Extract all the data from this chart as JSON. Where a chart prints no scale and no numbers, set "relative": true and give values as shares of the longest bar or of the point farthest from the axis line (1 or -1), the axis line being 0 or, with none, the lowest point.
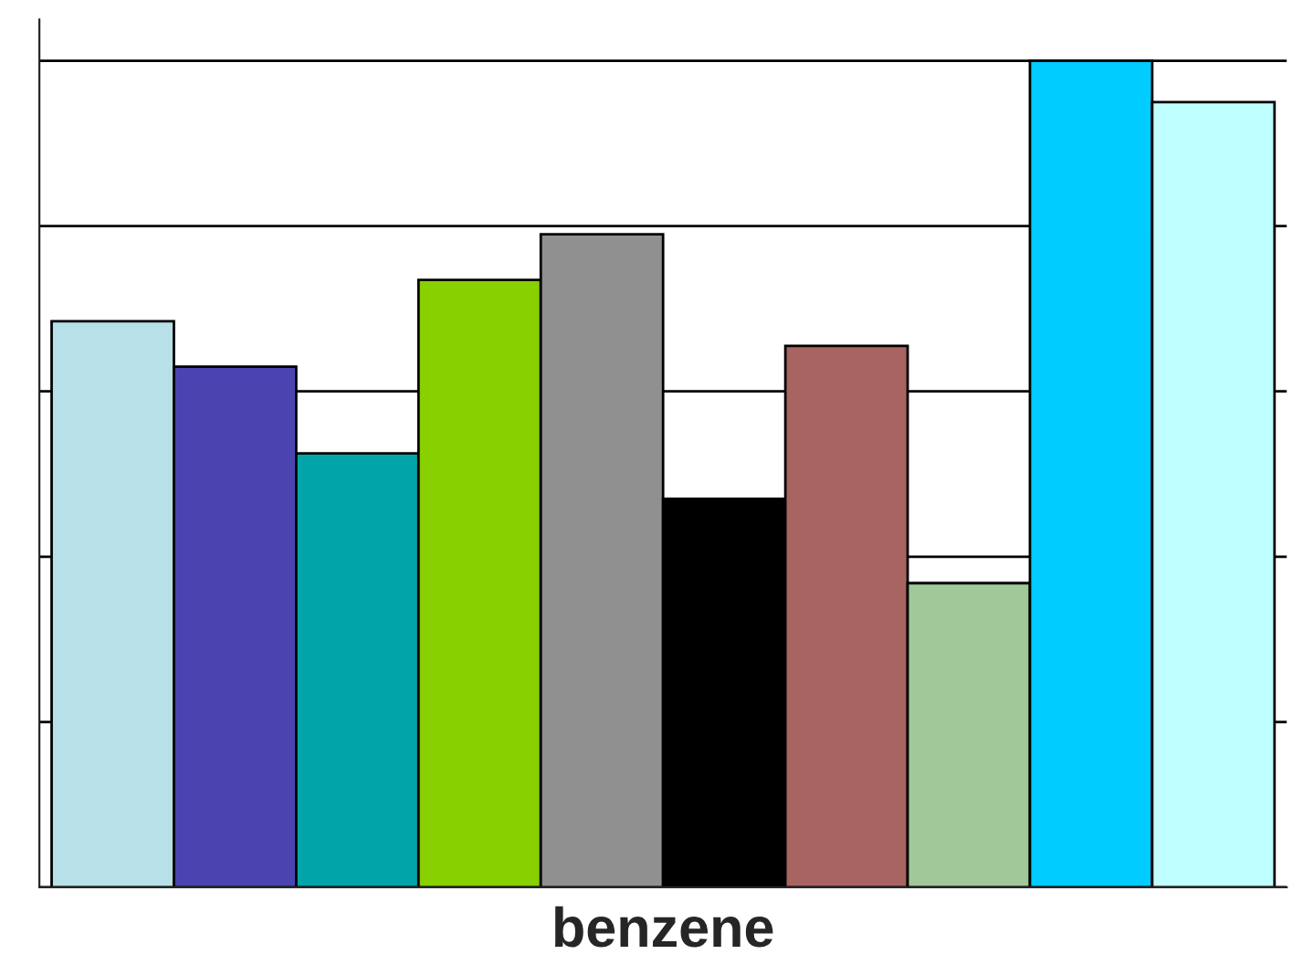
{
  "chart_data": {
    "type": "bar",
    "xlabel": "benzene",
    "relative": true,
    "grid": "y",
    "legend": false,
    "categories": [
      null,
      null,
      null,
      null,
      null,
      null,
      null,
      null,
      null,
      null
    ],
    "values": [
      0.685,
      0.63,
      0.525,
      0.735,
      0.79,
      0.47,
      0.655,
      0.368,
      1.0,
      0.95
    ],
    "colors": [
      "#b8e0e8",
      "#4b44b0",
      "#00a5aa",
      "#88d000",
      "#909090",
      "#000000",
      "#a86460",
      "#a0c898",
      "#00ccff",
      "#c0ffff"
    ]
  }
}
